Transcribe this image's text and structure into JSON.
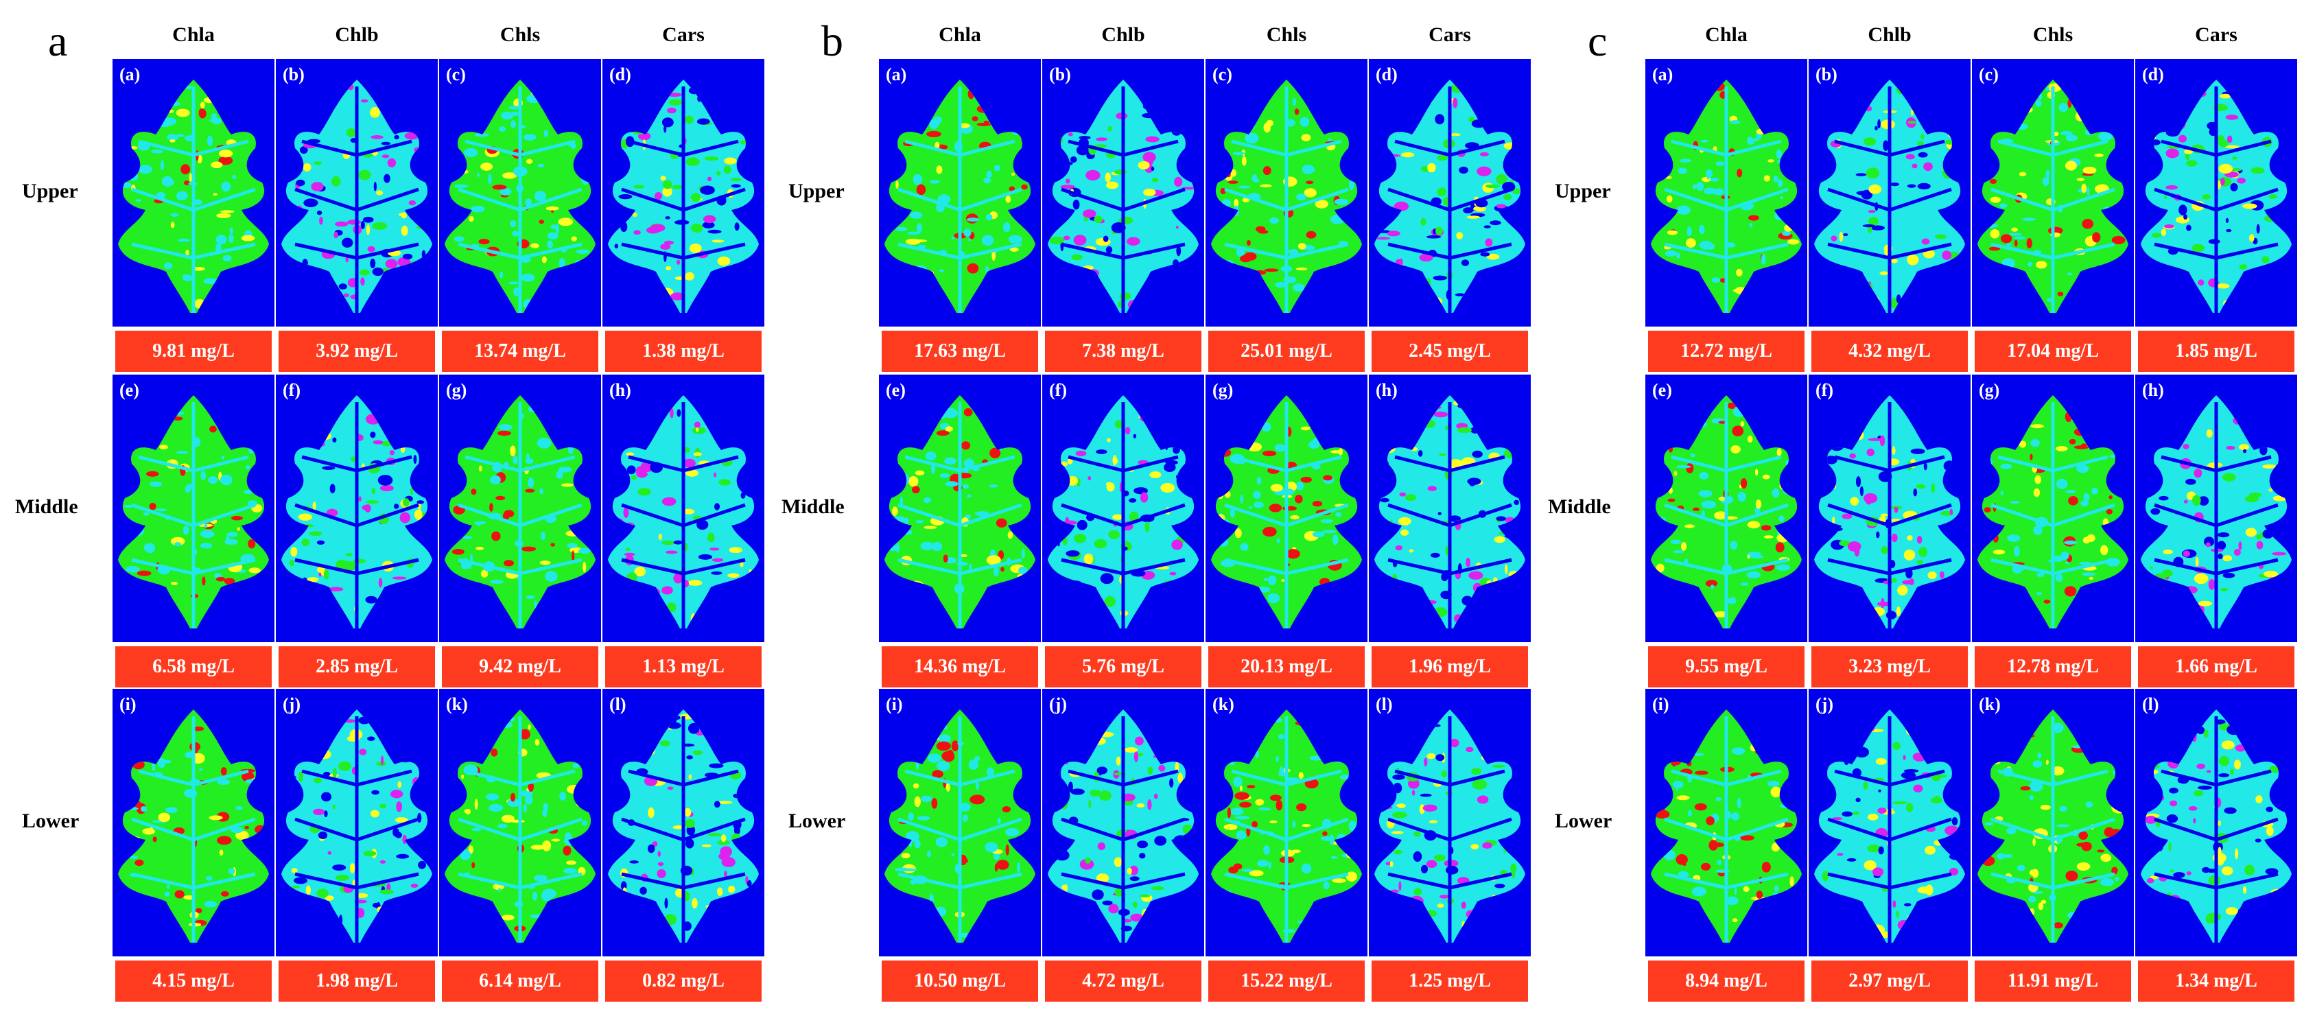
{
  "columns": [
    "Chla",
    "Chlb",
    "Chls",
    "Cars"
  ],
  "rows": [
    "Upper",
    "Middle",
    "Lower"
  ],
  "sub_labels": [
    "(a)",
    "(b)",
    "(c)",
    "(d)",
    "(e)",
    "(f)",
    "(g)",
    "(h)",
    "(i)",
    "(j)",
    "(k)",
    "(l)"
  ],
  "colors": {
    "background": "#0000ee",
    "value_bar": "#ff3b1f",
    "leaf_green": "#22ee22",
    "leaf_cyan": "#22e8e8",
    "leaf_yellow": "#ffff22",
    "leaf_red": "#ee1111",
    "leaf_magenta": "#dd22ee"
  },
  "figures": [
    {
      "letter": "a",
      "values": [
        [
          "9.81 mg/L",
          "3.92 mg/L",
          "13.74 mg/L",
          "1.38 mg/L"
        ],
        [
          "6.58 mg/L",
          "2.85 mg/L",
          "9.42 mg/L",
          "1.13 mg/L"
        ],
        [
          "4.15 mg/L",
          "1.98 mg/L",
          "6.14 mg/L",
          "0.82 mg/L"
        ]
      ]
    },
    {
      "letter": "b",
      "values": [
        [
          "17.63 mg/L",
          "7.38 mg/L",
          "25.01 mg/L",
          "2.45 mg/L"
        ],
        [
          "14.36 mg/L",
          "5.76 mg/L",
          "20.13 mg/L",
          "1.96 mg/L"
        ],
        [
          "10.50 mg/L",
          "4.72 mg/L",
          "15.22 mg/L",
          "1.25 mg/L"
        ]
      ]
    },
    {
      "letter": "c",
      "values": [
        [
          "12.72 mg/L",
          "4.32 mg/L",
          "17.04 mg/L",
          "1.85 mg/L"
        ],
        [
          "9.55 mg/L",
          "3.23 mg/L",
          "12.78 mg/L",
          "1.66 mg/L"
        ],
        [
          "8.94 mg/L",
          "2.97 mg/L",
          "11.91 mg/L",
          "1.34 mg/L"
        ]
      ]
    }
  ]
}
